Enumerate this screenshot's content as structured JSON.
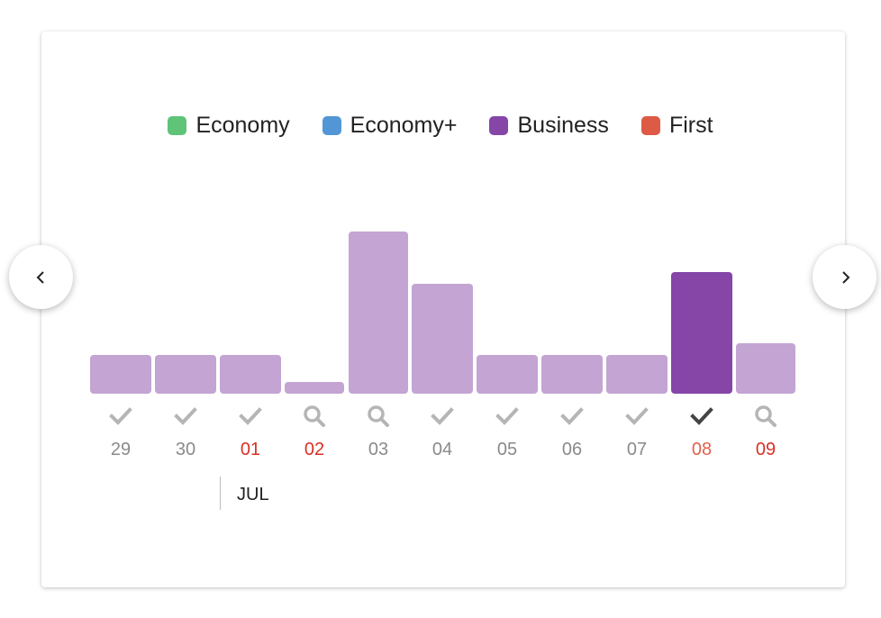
{
  "legend": [
    {
      "label": "Economy",
      "color": "#5fc477"
    },
    {
      "label": "Economy+",
      "color": "#5396d6"
    },
    {
      "label": "Business",
      "color": "#8546a8"
    },
    {
      "label": "First",
      "color": "#dd5a44"
    }
  ],
  "nav": {
    "prev_icon": "chevron-left-icon",
    "next_icon": "chevron-right-icon"
  },
  "colors": {
    "bar": "#c3a4d3",
    "bar_selected": "#8546a8",
    "weekend_label": "#d93025",
    "check": "#b5b5b5",
    "check_selected": "#444444"
  },
  "days": [
    {
      "label": "29",
      "icon": "check",
      "level": 0.24,
      "weekend": false,
      "selected": false
    },
    {
      "label": "30",
      "icon": "check",
      "level": 0.24,
      "weekend": false,
      "selected": false
    },
    {
      "label": "01",
      "icon": "check",
      "level": 0.24,
      "weekend": true,
      "selected": false
    },
    {
      "label": "02",
      "icon": "search",
      "level": 0.07,
      "weekend": true,
      "selected": false
    },
    {
      "label": "03",
      "icon": "search",
      "level": 1.0,
      "weekend": false,
      "selected": false
    },
    {
      "label": "04",
      "icon": "check",
      "level": 0.68,
      "weekend": false,
      "selected": false
    },
    {
      "label": "05",
      "icon": "check",
      "level": 0.24,
      "weekend": false,
      "selected": false
    },
    {
      "label": "06",
      "icon": "check",
      "level": 0.24,
      "weekend": false,
      "selected": false
    },
    {
      "label": "07",
      "icon": "check",
      "level": 0.24,
      "weekend": false,
      "selected": false
    },
    {
      "label": "08",
      "icon": "check",
      "level": 0.75,
      "weekend": true,
      "selected": true
    },
    {
      "label": "09",
      "icon": "search",
      "level": 0.31,
      "weekend": true,
      "selected": false
    }
  ],
  "month": {
    "label": "JUL"
  }
}
